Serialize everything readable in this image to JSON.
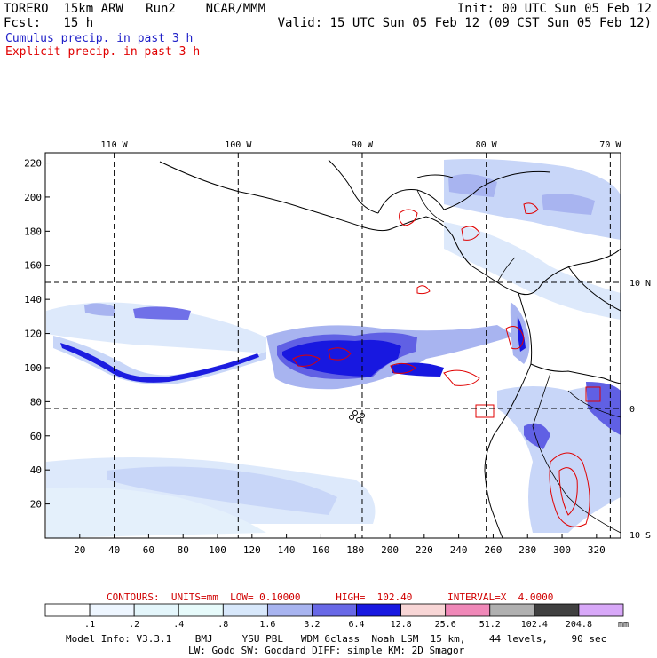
{
  "header": {
    "model_line": "TORERO  15km ARW   Run2    NCAR/MMM",
    "init_line": "Init: 00 UTC Sun 05 Feb 12",
    "fcst_line": "Fcst:   15 h",
    "valid_line": "Valid: 15 UTC Sun 05 Feb 12 (09 CST Sun 05 Feb 12)",
    "legend_cumulus": "Cumulus precip. in past 3 h",
    "legend_explicit": "Explicit precip. in past 3 h",
    "cumulus_color": "#2020c8",
    "explicit_color": "#e00000"
  },
  "footer": {
    "contour_info": "CONTOURS:  UNITS=mm  LOW= 0.10000      HIGH=  102.40      INTERVAL=X  4.0000",
    "model_info_1": "Model Info: V3.3.1    BMJ     YSU PBL   WDM 6class  Noah LSM  15 km,    44 levels,    90 sec",
    "model_info_2": "LW: Godd SW: Goddard DIFF: simple KM: 2D Smagor"
  },
  "chart_data": {
    "type": "heatmap",
    "title": "Cumulus precip. in past 3 h / Explicit precip. in past 3 h",
    "x_ticks": [
      20,
      40,
      60,
      80,
      100,
      120,
      140,
      160,
      180,
      200,
      220,
      240,
      260,
      280,
      300,
      320
    ],
    "y_ticks": [
      20,
      40,
      60,
      80,
      100,
      120,
      140,
      160,
      180,
      200,
      220
    ],
    "xlim": [
      0,
      334
    ],
    "ylim": [
      0,
      226
    ],
    "lon_labels": [
      {
        "label": "110 W",
        "x": 40
      },
      {
        "label": "100 W",
        "x": 112
      },
      {
        "label": "90 W",
        "x": 184
      },
      {
        "label": "80 W",
        "x": 256
      },
      {
        "label": "70 W",
        "x": 328
      }
    ],
    "lat_labels": [
      {
        "label": "10 N",
        "y": 150
      },
      {
        "label": "0",
        "y": 76
      },
      {
        "label": "10 S",
        "y": 2
      }
    ],
    "colorbar": {
      "ticks": [
        ".1",
        ".2",
        ".4",
        ".8",
        "1.6",
        "3.2",
        "6.4",
        "12.8",
        "25.6",
        "51.2",
        "102.4",
        "204.8"
      ],
      "unit": "mm",
      "colors": [
        "#ffffff",
        "#eef6ff",
        "#e4f6fb",
        "#e7fbfb",
        "#d8e8fb",
        "#a8b4f0",
        "#6868e6",
        "#1818e0",
        "#f8d6d6",
        "#f088b8",
        "#b0b0b0",
        "#404040",
        "#d8a8f8"
      ]
    },
    "contour_levels": {
      "units": "mm",
      "low": 0.1,
      "high": 102.4,
      "interval": 4.0
    }
  }
}
